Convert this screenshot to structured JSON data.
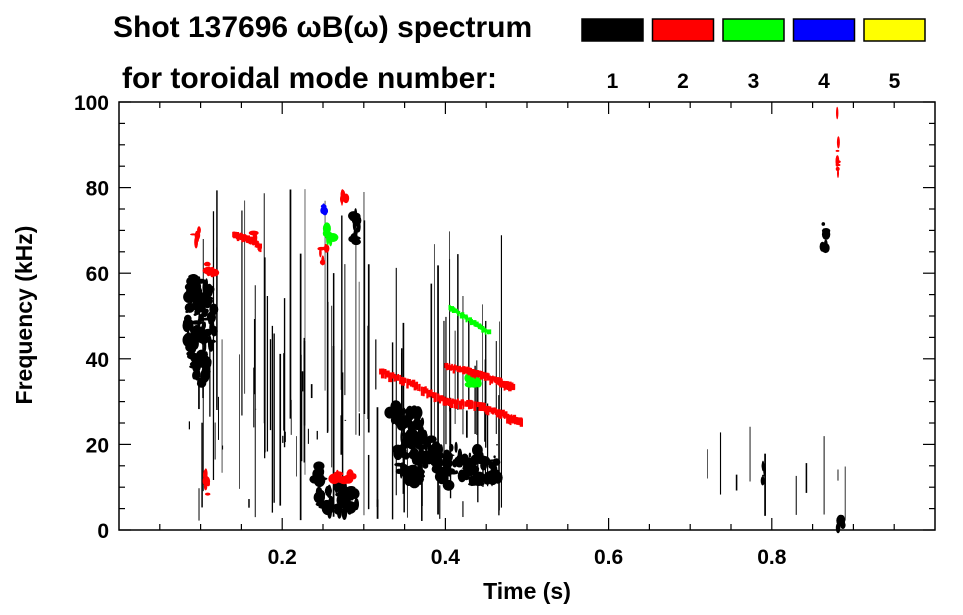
{
  "chart_data": {
    "type": "spectrogram",
    "title_line1": "Shot 137696 ωB(ω) spectrum",
    "title_line2": "for toroidal mode number:",
    "xlabel": "Time (s)",
    "ylabel": "Frequency (kHz)",
    "xlim": [
      0.0,
      1.0
    ],
    "ylim": [
      0,
      100
    ],
    "x_ticks": [
      "0.2",
      "0.4",
      "0.6",
      "0.8"
    ],
    "x_tick_values": [
      0.2,
      0.4,
      0.6,
      0.8
    ],
    "y_ticks": [
      "0",
      "20",
      "40",
      "60",
      "80",
      "100"
    ],
    "y_tick_values": [
      0,
      20,
      40,
      60,
      80,
      100
    ],
    "legend": [
      {
        "label": "1",
        "color": "#000000"
      },
      {
        "label": "2",
        "color": "#ff0000"
      },
      {
        "label": "3",
        "color": "#00ff00"
      },
      {
        "label": "4",
        "color": "#0000ff"
      },
      {
        "label": "5",
        "color": "#ffff00"
      }
    ],
    "blobs": [
      {
        "mode": 1,
        "x": 0.1,
        "y": 48,
        "w": 0.035,
        "h": 22
      },
      {
        "mode": 1,
        "x": 0.095,
        "y": 55,
        "w": 0.02,
        "h": 10
      },
      {
        "mode": 1,
        "x": 0.1,
        "y": 38,
        "w": 0.02,
        "h": 8
      },
      {
        "mode": 1,
        "x": 0.27,
        "y": 7,
        "w": 0.05,
        "h": 7
      },
      {
        "mode": 1,
        "x": 0.245,
        "y": 12,
        "w": 0.012,
        "h": 7
      },
      {
        "mode": 1,
        "x": 0.29,
        "y": 70,
        "w": 0.012,
        "h": 9
      },
      {
        "mode": 1,
        "x": 0.365,
        "y": 17,
        "w": 0.055,
        "h": 13
      },
      {
        "mode": 1,
        "x": 0.36,
        "y": 24,
        "w": 0.03,
        "h": 8
      },
      {
        "mode": 1,
        "x": 0.405,
        "y": 15,
        "w": 0.035,
        "h": 10
      },
      {
        "mode": 1,
        "x": 0.435,
        "y": 15,
        "w": 0.03,
        "h": 9
      },
      {
        "mode": 1,
        "x": 0.458,
        "y": 14,
        "w": 0.016,
        "h": 7
      },
      {
        "mode": 1,
        "x": 0.34,
        "y": 27,
        "w": 0.018,
        "h": 4
      },
      {
        "mode": 1,
        "x": 0.79,
        "y": 14,
        "w": 0.003,
        "h": 9
      },
      {
        "mode": 1,
        "x": 0.865,
        "y": 68,
        "w": 0.008,
        "h": 8
      },
      {
        "mode": 1,
        "x": 0.884,
        "y": 1.5,
        "w": 0.01,
        "h": 2.5
      },
      {
        "mode": 2,
        "x": 0.112,
        "y": 61,
        "w": 0.012,
        "h": 3
      },
      {
        "mode": 2,
        "x": 0.095,
        "y": 69,
        "w": 0.008,
        "h": 5
      },
      {
        "mode": 2,
        "x": 0.165,
        "y": 68,
        "w": 0.01,
        "h": 3
      },
      {
        "mode": 2,
        "x": 0.25,
        "y": 65,
        "w": 0.01,
        "h": 5
      },
      {
        "mode": 2,
        "x": 0.275,
        "y": 77,
        "w": 0.007,
        "h": 4
      },
      {
        "mode": 2,
        "x": 0.275,
        "y": 12.5,
        "w": 0.03,
        "h": 2
      },
      {
        "mode": 2,
        "x": 0.107,
        "y": 11,
        "w": 0.007,
        "h": 6
      },
      {
        "mode": 2,
        "x": 0.88,
        "y": 90,
        "w": 0.004,
        "h": 16
      },
      {
        "mode": 3,
        "x": 0.258,
        "y": 69,
        "w": 0.012,
        "h": 4
      },
      {
        "mode": 3,
        "x": 0.435,
        "y": 35,
        "w": 0.015,
        "h": 3
      },
      {
        "mode": 4,
        "x": 0.252,
        "y": 75,
        "w": 0.005,
        "h": 2
      }
    ],
    "ridges": [
      {
        "mode": 2,
        "points": [
          [
            0.32,
            37
          ],
          [
            0.36,
            34
          ],
          [
            0.4,
            30
          ],
          [
            0.44,
            29
          ],
          [
            0.47,
            27
          ],
          [
            0.495,
            25
          ]
        ],
        "thick": 2.5
      },
      {
        "mode": 2,
        "points": [
          [
            0.4,
            38
          ],
          [
            0.43,
            37
          ],
          [
            0.46,
            35
          ],
          [
            0.485,
            33
          ]
        ],
        "thick": 2.5
      },
      {
        "mode": 3,
        "points": [
          [
            0.405,
            52
          ],
          [
            0.43,
            49
          ],
          [
            0.455,
            46
          ]
        ],
        "thick": 1.6
      },
      {
        "mode": 2,
        "points": [
          [
            0.14,
            69
          ],
          [
            0.16,
            68
          ],
          [
            0.175,
            66
          ]
        ],
        "thick": 2.0
      }
    ],
    "streaks": [
      {
        "mode": 1,
        "x0": 0.085,
        "x1": 0.32,
        "y0": 2,
        "y1": 80,
        "count": 70
      },
      {
        "mode": 1,
        "x0": 0.33,
        "x1": 0.47,
        "y0": 2,
        "y1": 70,
        "count": 40
      },
      {
        "mode": 1,
        "x0": 0.7,
        "x1": 0.9,
        "y0": 1,
        "y1": 30,
        "count": 10
      }
    ]
  }
}
